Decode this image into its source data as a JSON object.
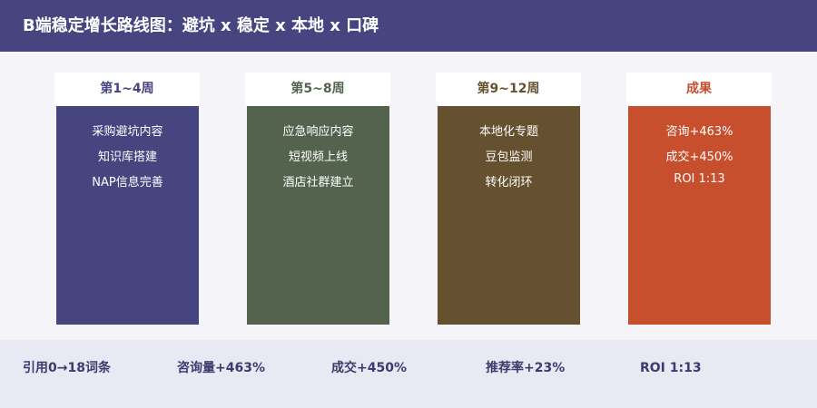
{
  "header": {
    "title": "B端稳定增长路线图：避坑 x 稳定 x 本地 x 口碑"
  },
  "columns": [
    {
      "label": "第1~4周",
      "items": [
        "采购避坑内容",
        "知识库搭建",
        "NAP信息完善"
      ]
    },
    {
      "label": "第5~8周",
      "items": [
        "应急响应内容",
        "短视频上线",
        "酒店社群建立"
      ]
    },
    {
      "label": "第9~12周",
      "items": [
        "本地化专题",
        "豆包监测",
        "转化闭环"
      ]
    },
    {
      "label": "成果",
      "items": [
        "咨询+463%",
        "成交+450%",
        "ROI 1:13"
      ]
    }
  ],
  "footer": {
    "items": [
      "引用0→18词条",
      "咨询量+463%",
      "成交+450%",
      "推荐率+23%",
      "ROI 1:13"
    ]
  }
}
